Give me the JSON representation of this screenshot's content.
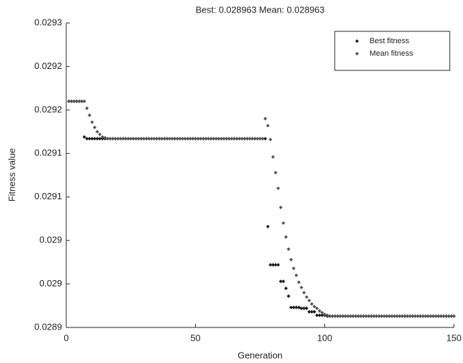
{
  "chart_data": {
    "type": "scatter",
    "title": "Best: 0.028963 Mean: 0.028963",
    "xlabel": "Generation",
    "ylabel": "Fitness value",
    "x": [
      1,
      2,
      3,
      4,
      5,
      6,
      7,
      8,
      9,
      10,
      11,
      12,
      13,
      14,
      15,
      16,
      17,
      18,
      19,
      20,
      21,
      22,
      23,
      24,
      25,
      26,
      27,
      28,
      29,
      30,
      31,
      32,
      33,
      34,
      35,
      36,
      37,
      38,
      39,
      40,
      41,
      42,
      43,
      44,
      45,
      46,
      47,
      48,
      49,
      50,
      51,
      52,
      53,
      54,
      55,
      56,
      57,
      58,
      59,
      60,
      61,
      62,
      63,
      64,
      65,
      66,
      67,
      68,
      69,
      70,
      71,
      72,
      73,
      74,
      75,
      76,
      77,
      78,
      79,
      80,
      81,
      82,
      83,
      84,
      85,
      86,
      87,
      88,
      89,
      90,
      91,
      92,
      93,
      94,
      95,
      96,
      97,
      98,
      99,
      100,
      101,
      102,
      103,
      104,
      105,
      106,
      107,
      108,
      109,
      110,
      111,
      112,
      113,
      114,
      115,
      116,
      117,
      118,
      119,
      120,
      121,
      122,
      123,
      124,
      125,
      126,
      127,
      128,
      129,
      130,
      131,
      132,
      133,
      134,
      135,
      136,
      137,
      138,
      139,
      140,
      141,
      142,
      143,
      144,
      145,
      146,
      147,
      148,
      149,
      150
    ],
    "series": [
      {
        "name": "Best fitness",
        "color": "#1a1a1a",
        "values": [
          0.02921,
          0.02921,
          0.02921,
          0.02921,
          0.02921,
          0.02921,
          0.029169,
          0.029167,
          0.029167,
          0.029167,
          0.029167,
          0.029167,
          0.029167,
          0.029167,
          0.029167,
          0.029167,
          0.029167,
          0.029167,
          0.029167,
          0.029167,
          0.029167,
          0.029167,
          0.029167,
          0.029167,
          0.029167,
          0.029167,
          0.029167,
          0.029167,
          0.029167,
          0.029167,
          0.029167,
          0.029167,
          0.029167,
          0.029167,
          0.029167,
          0.029167,
          0.029167,
          0.029167,
          0.029167,
          0.029167,
          0.029167,
          0.029167,
          0.029167,
          0.029167,
          0.029167,
          0.029167,
          0.029167,
          0.029167,
          0.029167,
          0.029167,
          0.029167,
          0.029167,
          0.029167,
          0.029167,
          0.029167,
          0.029167,
          0.029167,
          0.029167,
          0.029167,
          0.029167,
          0.029167,
          0.029167,
          0.029167,
          0.029167,
          0.029167,
          0.029167,
          0.029167,
          0.029167,
          0.029167,
          0.029167,
          0.029167,
          0.029167,
          0.029167,
          0.029167,
          0.029167,
          0.029167,
          0.029167,
          0.029066,
          0.029022,
          0.029022,
          0.029022,
          0.029022,
          0.029003,
          0.029003,
          0.028995,
          0.028986,
          0.028973,
          0.028973,
          0.028973,
          0.028973,
          0.028972,
          0.028972,
          0.028972,
          0.028968,
          0.028968,
          0.028968,
          0.028964,
          0.028964,
          0.028964,
          0.028964,
          0.028963,
          0.028963,
          0.028963,
          0.028963,
          0.028963,
          0.028963,
          0.028963,
          0.028963,
          0.028963,
          0.028963,
          0.028963,
          0.028963,
          0.028963,
          0.028963,
          0.028963,
          0.028963,
          0.028963,
          0.028963,
          0.028963,
          0.028963,
          0.028963,
          0.028963,
          0.028963,
          0.028963,
          0.028963,
          0.028963,
          0.028963,
          0.028963,
          0.028963,
          0.028963,
          0.028963,
          0.028963,
          0.028963,
          0.028963,
          0.028963,
          0.028963,
          0.028963,
          0.028963,
          0.028963,
          0.028963,
          0.028963,
          0.028963,
          0.028963,
          0.028963,
          0.028963,
          0.028963,
          0.028963,
          0.028963,
          0.028963,
          0.028963
        ]
      },
      {
        "name": "Mean fitness",
        "color": "#555555",
        "values": [
          0.02921,
          0.02921,
          0.02921,
          0.02921,
          0.02921,
          0.02921,
          0.02921,
          0.029202,
          0.029194,
          0.029186,
          0.02918,
          0.029175,
          0.029172,
          0.029169,
          0.029168,
          0.029167,
          0.029167,
          0.029167,
          0.029167,
          0.029167,
          0.029167,
          0.029167,
          0.029167,
          0.029167,
          0.029167,
          0.029167,
          0.029167,
          0.029167,
          0.029167,
          0.029167,
          0.029167,
          0.029167,
          0.029167,
          0.029167,
          0.029167,
          0.029167,
          0.029167,
          0.029167,
          0.029167,
          0.029167,
          0.029167,
          0.029167,
          0.029167,
          0.029167,
          0.029167,
          0.029167,
          0.029167,
          0.029167,
          0.029167,
          0.029167,
          0.029167,
          0.029167,
          0.029167,
          0.029167,
          0.029167,
          0.029167,
          0.029167,
          0.029167,
          0.029167,
          0.029167,
          0.029167,
          0.029167,
          0.029167,
          0.029167,
          0.029167,
          0.029167,
          0.029167,
          0.029167,
          0.029167,
          0.029167,
          0.029167,
          0.029167,
          0.029167,
          0.029167,
          0.029167,
          0.029167,
          0.02919,
          0.029182,
          0.029166,
          0.029146,
          0.029128,
          0.02911,
          0.029088,
          0.02907,
          0.029054,
          0.02904,
          0.029028,
          0.029018,
          0.02901,
          0.029002,
          0.028996,
          0.02899,
          0.028985,
          0.028981,
          0.028977,
          0.028974,
          0.028972,
          0.028969,
          0.028967,
          0.028965,
          0.028964,
          0.028963,
          0.028963,
          0.028963,
          0.028963,
          0.028963,
          0.028963,
          0.028963,
          0.028963,
          0.028963,
          0.028963,
          0.028963,
          0.028963,
          0.028963,
          0.028963,
          0.028963,
          0.028963,
          0.028963,
          0.028963,
          0.028963,
          0.028963,
          0.028963,
          0.028963,
          0.028963,
          0.028963,
          0.028963,
          0.028963,
          0.028963,
          0.028963,
          0.028963,
          0.028963,
          0.028963,
          0.028963,
          0.028963,
          0.028963,
          0.028963,
          0.028963,
          0.028963,
          0.028963,
          0.028963,
          0.028963,
          0.028963,
          0.028963,
          0.028963,
          0.028963,
          0.028963,
          0.028963,
          0.028963,
          0.028963,
          0.028963
        ]
      }
    ],
    "xlim": [
      0,
      150
    ],
    "xticks": [
      0,
      50,
      100,
      150
    ],
    "ylim": [
      0.02895,
      0.0293
    ],
    "yticks": [
      0.0293,
      {
        "value": 0.02925,
        "label": "0.0292"
      },
      0.0292,
      {
        "value": 0.02915,
        "label": "0.0291"
      },
      0.0291,
      {
        "value": 0.02905,
        "label": "0.029"
      },
      0.029,
      {
        "value": 0.02895,
        "label": "0.0289"
      }
    ],
    "legend": "upper right"
  }
}
